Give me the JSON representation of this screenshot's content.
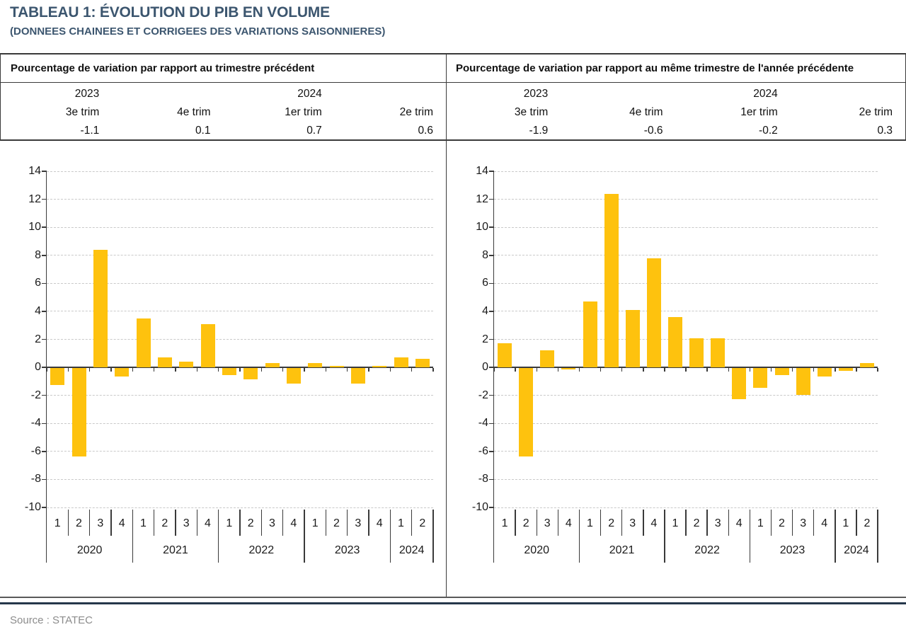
{
  "title": "TABLEAU 1: ÉVOLUTION DU PIB EN VOLUME",
  "subtitle": "(DONNEES CHAINEES ET CORRIGEES DES VARIATIONS SAISONNIERES)",
  "source": "Source : STATEC",
  "colors": {
    "title_blue": "#3c566f",
    "bar_gold": "#fec20e",
    "rule_navy": "#26374b",
    "rule_gray": "#595959",
    "gridline_gray": "#c9c9c9",
    "axis_dark": "#3a3a3a",
    "source_gray": "#8c8c8c"
  },
  "summary_tables": [
    {
      "header": "Pourcentage de variation par rapport au trimestre précédent",
      "years": [
        "2023",
        "",
        "2024",
        ""
      ],
      "quarters": [
        "3e trim",
        "4e trim",
        "1er trim",
        "2e trim"
      ],
      "values": [
        "-1.1",
        "0.1",
        "0.7",
        "0.6"
      ]
    },
    {
      "header": "Pourcentage de variation par rapport au même trimestre de l'année précédente",
      "years": [
        "2023",
        "",
        "2024",
        ""
      ],
      "quarters": [
        "3e trim",
        "4e trim",
        "1er trim",
        "2e trim"
      ],
      "values": [
        "-1.9",
        "-0.6",
        "-0.2",
        "0.3"
      ]
    }
  ],
  "chart_data": [
    {
      "type": "bar",
      "panel": "left",
      "title": "Pourcentage de variation par rapport au trimestre précédent",
      "ylim": [
        -10,
        14
      ],
      "ytick_step": 2,
      "grid": "horizontal-dashed",
      "legend": "none",
      "bar_color": "#fec20e",
      "groups": [
        {
          "year": "2020",
          "quarters": [
            "1",
            "2",
            "3",
            "4"
          ],
          "values": [
            -1.2,
            -6.3,
            8.4,
            -0.6
          ]
        },
        {
          "year": "2021",
          "quarters": [
            "1",
            "2",
            "3",
            "4"
          ],
          "values": [
            3.5,
            0.7,
            0.4,
            3.1
          ]
        },
        {
          "year": "2022",
          "quarters": [
            "1",
            "2",
            "3",
            "4"
          ],
          "values": [
            -0.5,
            -0.8,
            0.3,
            -1.1
          ]
        },
        {
          "year": "2023",
          "quarters": [
            "1",
            "2",
            "3",
            "4"
          ],
          "values": [
            0.3,
            0.1,
            -1.1,
            0.1
          ]
        },
        {
          "year": "2024",
          "quarters": [
            "1",
            "2"
          ],
          "values": [
            0.7,
            0.6
          ]
        }
      ]
    },
    {
      "type": "bar",
      "panel": "right",
      "title": "Pourcentage de variation par rapport au même trimestre de l'année précédente",
      "ylim": [
        -10,
        14
      ],
      "ytick_step": 2,
      "grid": "horizontal-dashed",
      "legend": "none",
      "bar_color": "#fec20e",
      "groups": [
        {
          "year": "2020",
          "quarters": [
            "1",
            "2",
            "3",
            "4"
          ],
          "values": [
            1.7,
            -6.3,
            1.2,
            -0.1
          ]
        },
        {
          "year": "2021",
          "quarters": [
            "1",
            "2",
            "3",
            "4"
          ],
          "values": [
            4.7,
            12.4,
            4.1,
            7.8
          ]
        },
        {
          "year": "2022",
          "quarters": [
            "1",
            "2",
            "3",
            "4"
          ],
          "values": [
            3.6,
            2.1,
            2.1,
            -2.2
          ]
        },
        {
          "year": "2023",
          "quarters": [
            "1",
            "2",
            "3",
            "4"
          ],
          "values": [
            -1.4,
            -0.5,
            -1.9,
            -0.6
          ]
        },
        {
          "year": "2024",
          "quarters": [
            "1",
            "2"
          ],
          "values": [
            -0.2,
            0.3
          ]
        }
      ]
    }
  ]
}
